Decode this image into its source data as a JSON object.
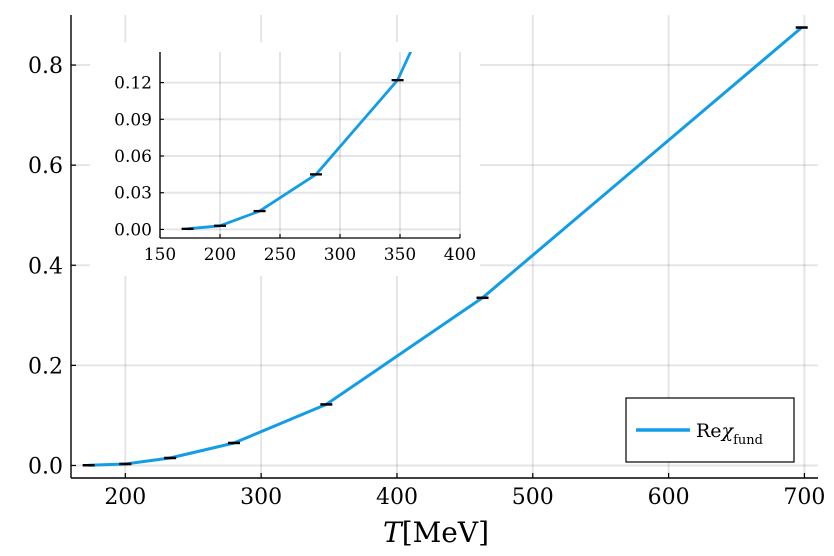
{
  "chart_data": {
    "type": "line",
    "main": {
      "xlabel_var": "T",
      "xlabel_unit": "[MeV]",
      "xlim": [
        160,
        710
      ],
      "ylim": [
        -0.025,
        0.9
      ],
      "xticks": [
        200,
        300,
        400,
        500,
        600,
        700
      ],
      "yticks": [
        0.0,
        0.2,
        0.4,
        0.6,
        0.8
      ],
      "ytick_labels": [
        "0.0",
        "0.2",
        "0.4",
        "0.6",
        "0.8"
      ],
      "grid": true,
      "legend_position": "bottom-right"
    },
    "inset": {
      "xlim": [
        150,
        400
      ],
      "ylim": [
        -0.007,
        0.145
      ],
      "xticks": [
        150,
        200,
        250,
        300,
        350,
        400
      ],
      "yticks": [
        0.0,
        0.03,
        0.06,
        0.09,
        0.12
      ],
      "ytick_labels": [
        "0.00",
        "0.03",
        "0.06",
        "0.09",
        "0.12"
      ],
      "series_end_x": 363,
      "series_end_y": 0.154
    },
    "series": [
      {
        "name_main": "Re",
        "name_symbol": "χ",
        "name_sub": "fund",
        "color": "#129de6",
        "x": [
          173,
          200,
          233,
          280,
          348,
          463,
          698
        ],
        "y": [
          0.0005,
          0.003,
          0.015,
          0.045,
          0.122,
          0.335,
          0.875
        ]
      }
    ],
    "errorbar_color": "#000000"
  }
}
